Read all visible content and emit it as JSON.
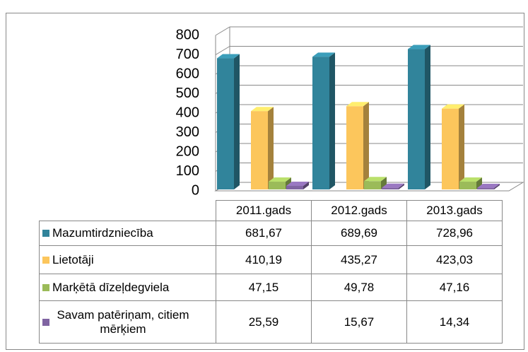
{
  "chart_data": {
    "type": "bar3d",
    "categories": [
      "2011.gads",
      "2012.gads",
      "2013.gads"
    ],
    "series": [
      {
        "name": "Mazumtirdzniecība",
        "color": "#31849b",
        "values": [
          681.67,
          689.69,
          728.96
        ],
        "value_labels": [
          "681,67",
          "689,69",
          "728,96"
        ]
      },
      {
        "name": "Lietotāji",
        "color": "#fcc65c",
        "values": [
          410.19,
          435.27,
          423.03
        ],
        "value_labels": [
          "410,19",
          "435,27",
          "423,03"
        ]
      },
      {
        "name": "Marķētā dīzeļdegviela",
        "color": "#9bbb59",
        "values": [
          47.15,
          49.78,
          47.16
        ],
        "value_labels": [
          "47,15",
          "49,78",
          "47,16"
        ]
      },
      {
        "name": "Savam patēriņam, citiem mērķiem",
        "color": "#8064a2",
        "values": [
          25.59,
          15.67,
          14.34
        ],
        "value_labels": [
          "25,59",
          "15,67",
          "14,34"
        ]
      }
    ],
    "ylim": [
      0,
      800
    ],
    "yticks": [
      0,
      100,
      200,
      300,
      400,
      500,
      600,
      700,
      800
    ],
    "grid": true
  }
}
